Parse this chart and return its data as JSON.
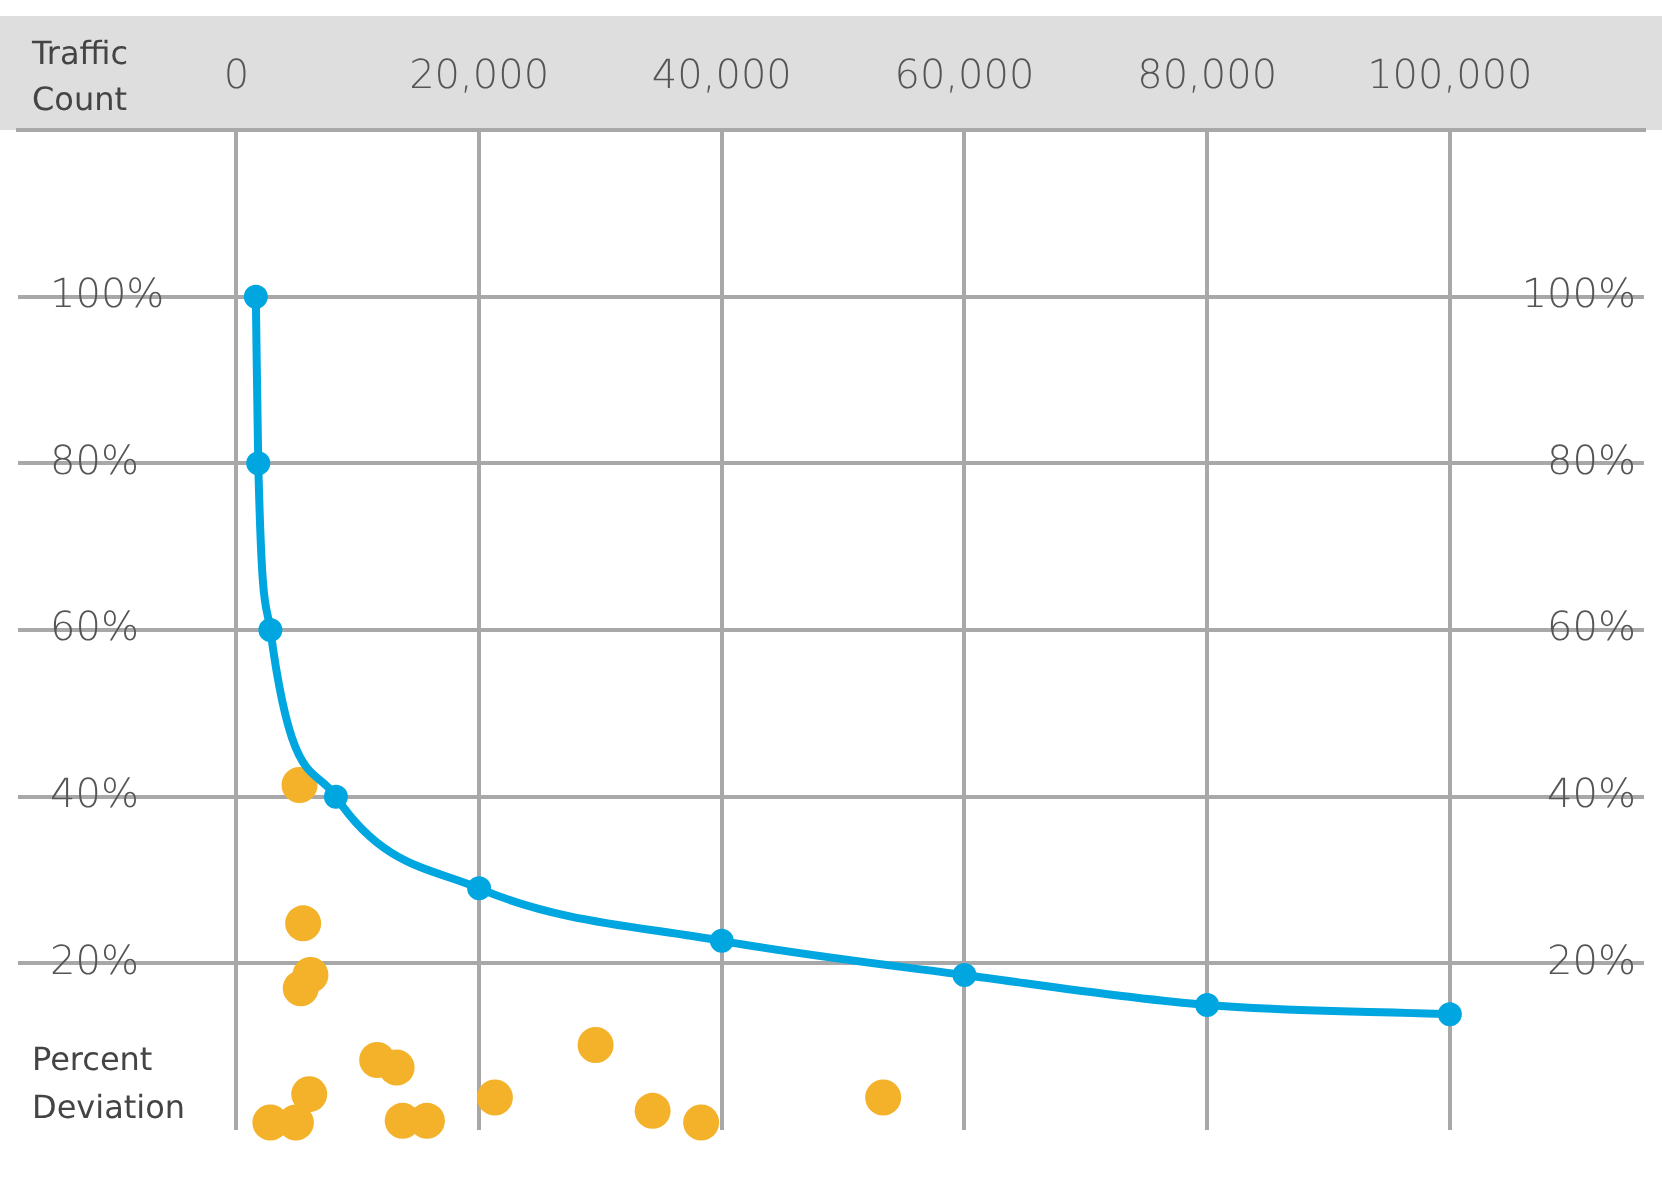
{
  "chart_data": {
    "type": "scatter",
    "xlabel": "Traffic Count",
    "ylabel": "Percent Deviation",
    "xlim": [
      -18000,
      116000
    ],
    "xticks": [
      {
        "value": 0,
        "label": "0"
      },
      {
        "value": 20000,
        "label": "20,000"
      },
      {
        "value": 40000,
        "label": "40,000"
      },
      {
        "value": 60000,
        "label": "60,000"
      },
      {
        "value": 80000,
        "label": "80,000"
      },
      {
        "value": 100000,
        "label": "100,000"
      }
    ],
    "ylim": [
      0,
      120
    ],
    "yticks": [
      {
        "value": 20,
        "label": "20%"
      },
      {
        "value": 40,
        "label": "40%"
      },
      {
        "value": 60,
        "label": "60%"
      },
      {
        "value": 80,
        "label": "80%"
      },
      {
        "value": 100,
        "label": "100%"
      }
    ],
    "y2lim": [
      0,
      120
    ],
    "y2ticks": [
      {
        "value": 20,
        "label": "20%"
      },
      {
        "value": 40,
        "label": "40%"
      },
      {
        "value": 60,
        "label": "60%"
      },
      {
        "value": 80,
        "label": "80%"
      },
      {
        "value": 100,
        "label": "100%"
      }
    ],
    "grid": true,
    "legend": false,
    "marker": "circle",
    "series": [
      {
        "type": "scatter",
        "color": "#f3b229",
        "x": [
          5200,
          5500,
          6100,
          5300,
          6000,
          11600,
          13200,
          29600,
          21300,
          34300,
          38300,
          53300,
          2800,
          4900,
          13700,
          15700
        ],
        "values": [
          41.4,
          24.8,
          18.6,
          17,
          4.3,
          8.4,
          7.5,
          10.2,
          3.9,
          2.3,
          0.9,
          3.9,
          0.9,
          0.9,
          1.1,
          1.1
        ]
      },
      {
        "type": "line",
        "color": "#00a6e0",
        "x": [
          1600,
          1800,
          2800,
          8200,
          20000,
          40000,
          60000,
          80000,
          100000
        ],
        "values": [
          100,
          80,
          60,
          40,
          29,
          22.7,
          18.6,
          15,
          13.9
        ]
      }
    ]
  }
}
